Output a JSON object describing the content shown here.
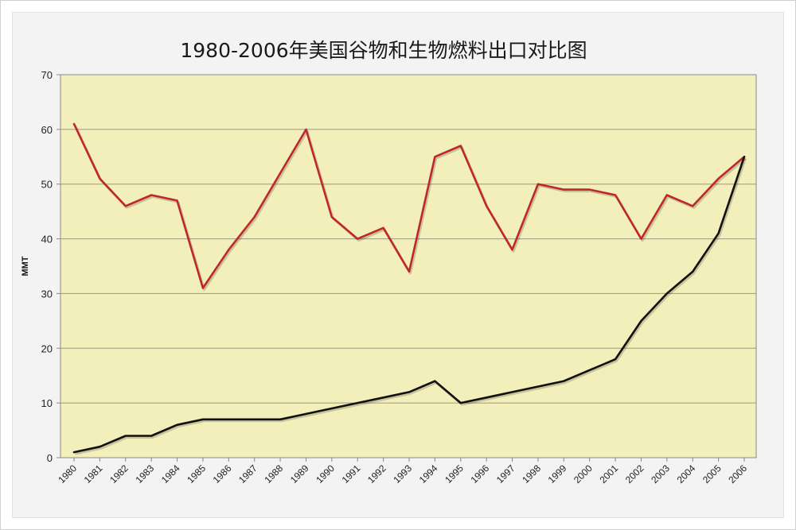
{
  "chart_data": {
    "type": "line",
    "title": "1980-2006年美国谷物和生物燃料出口对比图",
    "xlabel": "",
    "ylabel": "MMT",
    "ylim": [
      0,
      70
    ],
    "yticks": [
      0,
      10,
      20,
      30,
      40,
      50,
      60,
      70
    ],
    "grid": true,
    "x": [
      "1980",
      "1981",
      "1982",
      "1983",
      "1984",
      "1985",
      "1986",
      "1987",
      "1988",
      "1989",
      "1990",
      "1991",
      "1992",
      "1993",
      "1994",
      "1995",
      "1996",
      "1997",
      "1998",
      "1999",
      "2000",
      "2001",
      "2002",
      "2003",
      "2004",
      "2005",
      "2006"
    ],
    "series": [
      {
        "color": "#c0272d",
        "values": [
          61,
          51,
          46,
          48,
          47,
          31,
          38,
          44,
          52,
          60,
          44,
          40,
          42,
          34,
          55,
          57,
          46,
          38,
          50,
          49,
          49,
          48,
          40,
          48,
          46,
          51,
          55
        ]
      },
      {
        "color": "#111111",
        "values": [
          1,
          2,
          4,
          4,
          6,
          7,
          7,
          7,
          7,
          8,
          9,
          10,
          11,
          12,
          14,
          10,
          11,
          12,
          13,
          14,
          16,
          18,
          25,
          30,
          34,
          41,
          55
        ]
      }
    ]
  },
  "colors": {
    "plot_bg": "#f3efbb",
    "grid": "#9a9a80",
    "axis": "#888888"
  }
}
